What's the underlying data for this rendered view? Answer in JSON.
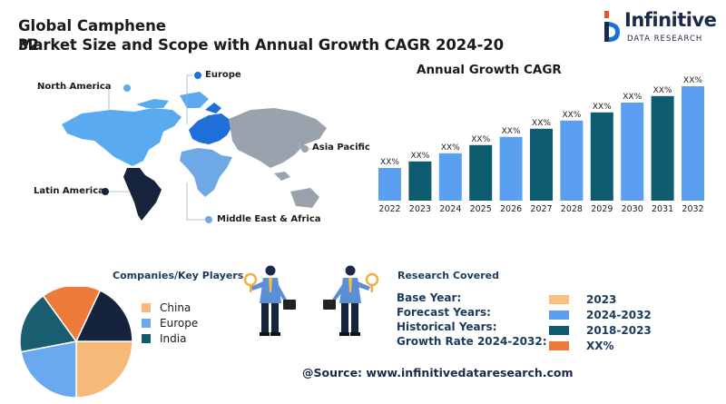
{
  "header": {
    "title_line1": "Global Camphene",
    "title_line2": "Market Size and Scope with Annual Growth CAGR 2024-20",
    "title_line2_overlap": "32"
  },
  "logo": {
    "name": "Infinitive",
    "subtitle": "DATA RESEARCH"
  },
  "map": {
    "regions": [
      {
        "label": "North America",
        "color": "#5aaaf0"
      },
      {
        "label": "Europe",
        "color": "#1e6fd9"
      },
      {
        "label": "Asia Pacific",
        "color": "#9aa3ad"
      },
      {
        "label": "Latin America",
        "color": "#16243d"
      },
      {
        "label": "Middle East & Africa",
        "color": "#6fa8e6"
      }
    ]
  },
  "chart_data": {
    "type": "bar",
    "title": "Annual Growth CAGR",
    "categories": [
      "2022",
      "2023",
      "2024",
      "2025",
      "2026",
      "2027",
      "2028",
      "2029",
      "2030",
      "2031",
      "2032"
    ],
    "values": [
      1,
      1.2,
      1.45,
      1.7,
      1.95,
      2.2,
      2.45,
      2.7,
      3.0,
      3.2,
      3.5
    ],
    "value_labels": [
      "XX%",
      "XX%",
      "XX%",
      "XX%",
      "XX%",
      "XX%",
      "XX%",
      "XX%",
      "XX%",
      "XX%",
      "XX%"
    ],
    "colors": [
      "#5a9ff0",
      "#0d5c70",
      "#5a9ff0",
      "#0d5c70",
      "#5a9ff0",
      "#0d5c70",
      "#5a9ff0",
      "#0d5c70",
      "#5a9ff0",
      "#0d5c70",
      "#5a9ff0"
    ],
    "note": "values are relative bar heights; no y-axis is printed"
  },
  "companies": {
    "heading": "Companies/Key Players",
    "legend": [
      {
        "label": "China",
        "color": "#f7b97a"
      },
      {
        "label": "Europe",
        "color": "#6aa8f0"
      },
      {
        "label": "India",
        "color": "#0e5a6e"
      }
    ],
    "pie": [
      {
        "value": 25,
        "color": "#f7b97a"
      },
      {
        "value": 22,
        "color": "#6aa8f0"
      },
      {
        "value": 18,
        "color": "#1b5d70"
      },
      {
        "value": 17,
        "color": "#ee7a3a"
      },
      {
        "value": 18,
        "color": "#15233d"
      }
    ]
  },
  "research": {
    "heading": "Research Covered",
    "rows": [
      {
        "label": "Base Year:",
        "value": "2023",
        "color": "#f7c07e"
      },
      {
        "label": "Forecast Years:",
        "value": "2024-2032",
        "color": "#5a9ff0"
      },
      {
        "label": "Historical Years:",
        "value": "2018-2023",
        "color": "#0e5a6e"
      },
      {
        "label": "Growth Rate 2024-2032:",
        "value": "XX%",
        "color": "#ee7a3a"
      }
    ]
  },
  "source": "@Source: www.infinitivedataresearch.com"
}
